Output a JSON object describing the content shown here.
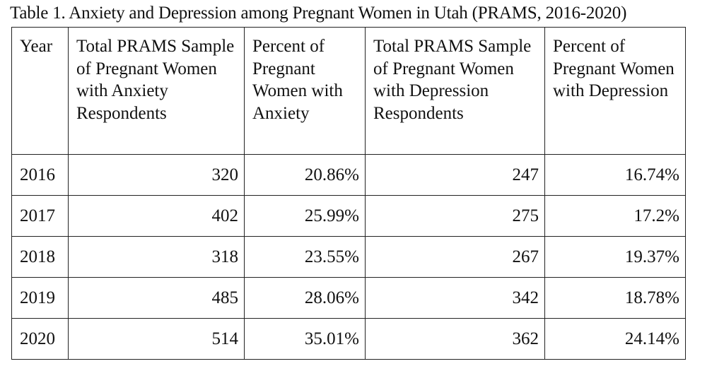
{
  "caption": "Table 1. Anxiety and Depression among Pregnant Women in Utah (PRAMS, 2016-2020)",
  "table": {
    "headers": [
      "Year",
      "Total PRAMS Sample of Pregnant Women with Anxiety Respondents",
      "Percent of Pregnant Women with Anxiety",
      "Total PRAMS Sample of Pregnant Women with Depression Respondents",
      "Percent of Pregnant Women with Depression"
    ],
    "rows": [
      [
        "2016",
        "320",
        "20.86%",
        "247",
        "16.74%"
      ],
      [
        "2017",
        "402",
        "25.99%",
        "275",
        "17.2%"
      ],
      [
        "2018",
        "318",
        "23.55%",
        "267",
        "19.37%"
      ],
      [
        "2019",
        "485",
        "28.06%",
        "342",
        "18.78%"
      ],
      [
        "2020",
        "514",
        "35.01%",
        "362",
        "24.14%"
      ]
    ]
  }
}
